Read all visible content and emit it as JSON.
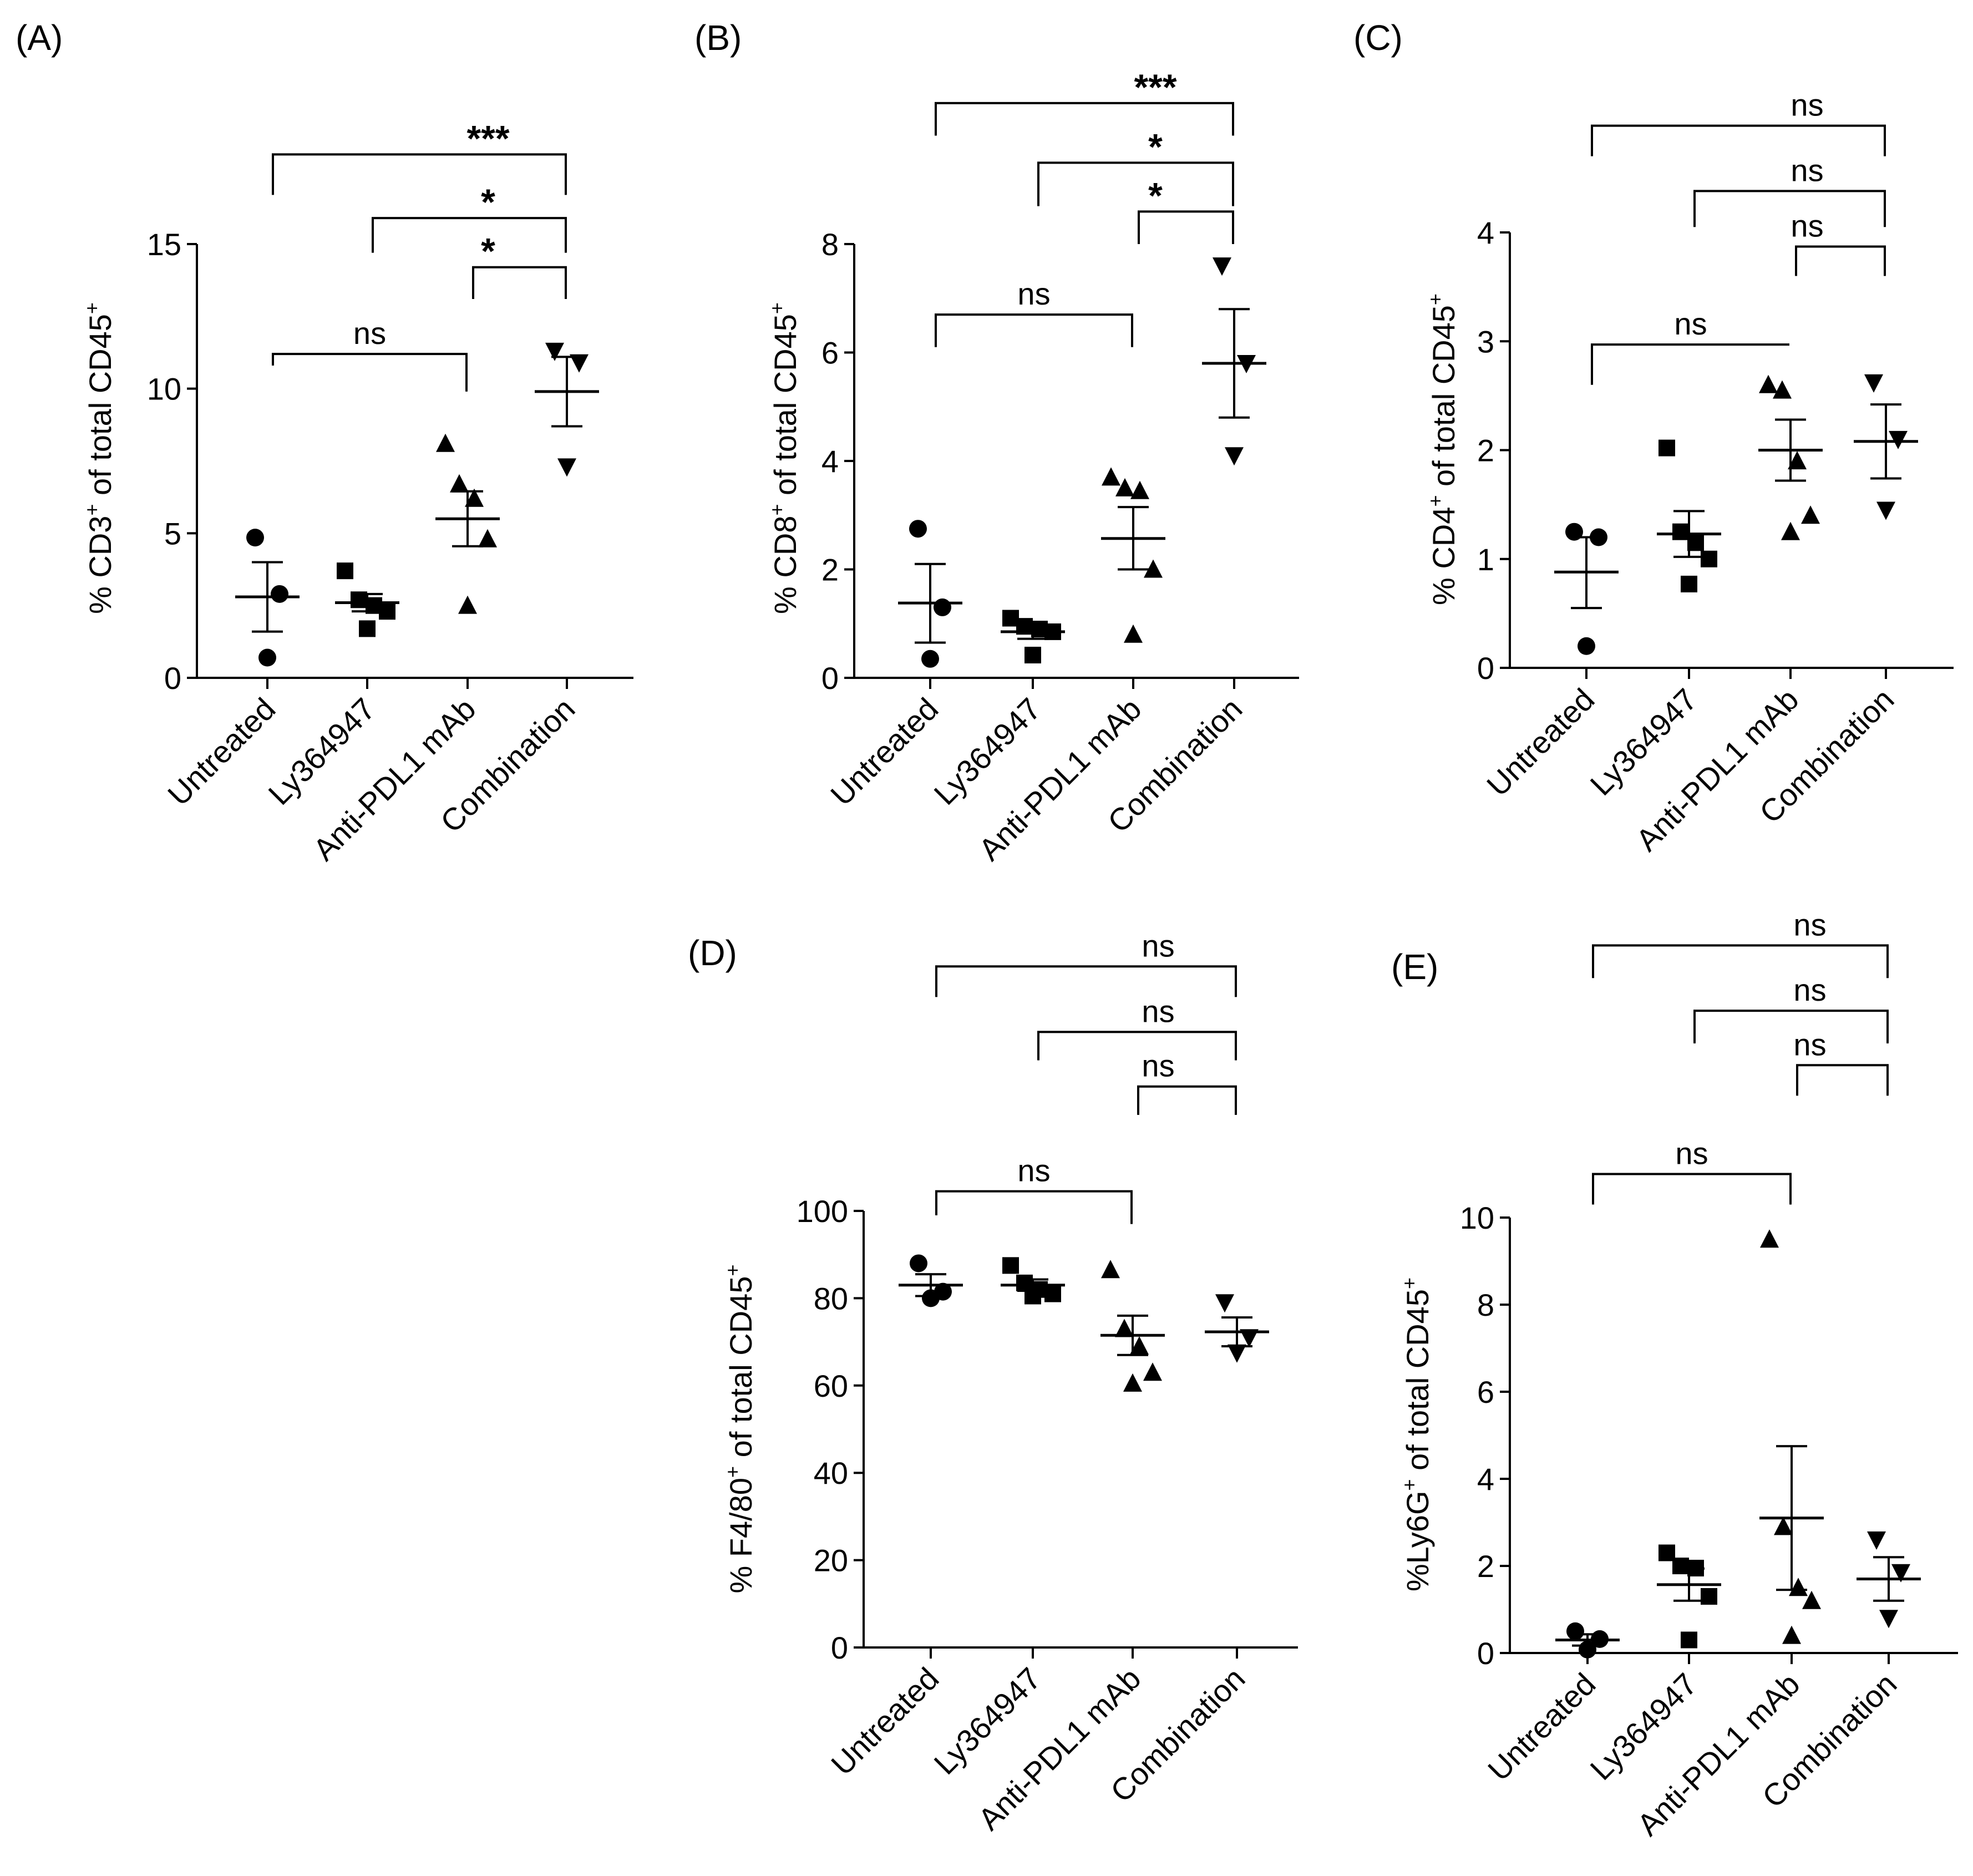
{
  "figure": {
    "categories": [
      "Untreated",
      "Ly364947",
      "Anti-PDL1 mAb",
      "Combination"
    ],
    "marker_colors": {
      "points": "#000000",
      "lines": "#000000"
    }
  },
  "chart_data": [
    {
      "panel": "(A)",
      "type": "scatter",
      "ylabel_main": "% CD3",
      "ylabel_sup1": "+",
      "ylabel_mid": " of total CD45",
      "ylabel_sup2": "+",
      "ylim": [
        0,
        15
      ],
      "yticks": [
        0,
        5,
        10,
        15
      ],
      "categories": [
        "Untreated",
        "Ly364947",
        "Anti-PDL1 mAb",
        "Combination"
      ],
      "groups": [
        {
          "marker": "circle",
          "points": [
            4.85,
            2.9,
            0.7
          ],
          "mean": 2.8,
          "sem_low": 1.6,
          "sem_high": 4.0
        },
        {
          "marker": "square",
          "points": [
            3.7,
            2.7,
            2.5,
            2.3,
            1.7
          ],
          "mean": 2.6,
          "sem_low": 2.3,
          "sem_high": 2.9
        },
        {
          "marker": "triangle-up",
          "points": [
            8.1,
            6.7,
            6.2,
            4.8,
            2.5
          ],
          "mean": 5.5,
          "sem_low": 4.55,
          "sem_high": 6.45
        },
        {
          "marker": "triangle-down",
          "points": [
            11.3,
            10.9,
            7.3
          ],
          "mean": 9.9,
          "sem_low": 8.7,
          "sem_high": 11.1
        }
      ],
      "brackets": [
        {
          "from": 0,
          "to": 2,
          "label": "ns",
          "y": 11.2,
          "y_left": 10.8,
          "y_right": 9.9
        },
        {
          "from": 2,
          "to": 3,
          "label": "*",
          "y": 14.2,
          "y_left": 13.1,
          "y_right": 13.1
        },
        {
          "from": 1,
          "to": 3,
          "label": "*",
          "y": 15.9,
          "y_left": 14.7,
          "y_right": 14.7
        },
        {
          "from": 0,
          "to": 3,
          "label": "***",
          "y": 18.1,
          "y_left": 16.7,
          "y_right": 16.7
        }
      ]
    },
    {
      "panel": "(B)",
      "type": "scatter",
      "ylabel_main": "% CD8",
      "ylabel_sup1": "+",
      "ylabel_mid": " of total CD45",
      "ylabel_sup2": "+",
      "ylim": [
        0,
        8
      ],
      "yticks": [
        0,
        2,
        4,
        6,
        8
      ],
      "categories": [
        "Untreated",
        "Ly364947",
        "Anti-PDL1 mAb",
        "Combination"
      ],
      "groups": [
        {
          "marker": "circle",
          "points": [
            2.75,
            1.3,
            0.35
          ],
          "mean": 1.38,
          "sem_low": 0.65,
          "sem_high": 2.1
        },
        {
          "marker": "square",
          "points": [
            1.1,
            0.95,
            0.9,
            0.85,
            0.42
          ],
          "mean": 0.85,
          "sem_low": 0.72,
          "sem_high": 0.98
        },
        {
          "marker": "triangle-up",
          "points": [
            3.7,
            3.5,
            3.45,
            2.0,
            0.8
          ],
          "mean": 2.57,
          "sem_low": 2.0,
          "sem_high": 3.15
        },
        {
          "marker": "triangle-down",
          "points": [
            7.6,
            5.8,
            4.1
          ],
          "mean": 5.8,
          "sem_low": 4.8,
          "sem_high": 6.8
        }
      ],
      "brackets": [
        {
          "from": 0,
          "to": 2,
          "label": "ns",
          "y": 6.7,
          "y_left": 6.1,
          "y_right": 6.1
        },
        {
          "from": 2,
          "to": 3,
          "label": "*",
          "y": 8.6,
          "y_left": 8.0,
          "y_right": 8.0
        },
        {
          "from": 1,
          "to": 3,
          "label": "*",
          "y": 9.5,
          "y_left": 8.7,
          "y_right": 8.7
        },
        {
          "from": 0,
          "to": 3,
          "label": "***",
          "y": 10.6,
          "y_left": 10.0,
          "y_right": 10.0
        }
      ]
    },
    {
      "panel": "(C)",
      "type": "scatter",
      "ylabel_main": "% CD4",
      "ylabel_sup1": "+",
      "ylabel_mid": " of total CD45",
      "ylabel_sup2": "+",
      "ylim": [
        0,
        4
      ],
      "yticks": [
        0,
        1,
        2,
        3,
        4
      ],
      "categories": [
        "Untreated",
        "Ly364947",
        "Anti-PDL1 mAb",
        "Combination"
      ],
      "groups": [
        {
          "marker": "circle",
          "points": [
            1.25,
            1.2,
            0.2
          ],
          "mean": 0.88,
          "sem_low": 0.55,
          "sem_high": 1.2
        },
        {
          "marker": "square",
          "points": [
            2.02,
            1.25,
            1.15,
            1.0,
            0.77
          ],
          "mean": 1.23,
          "sem_low": 1.02,
          "sem_high": 1.44
        },
        {
          "marker": "triangle-up",
          "points": [
            2.6,
            2.55,
            1.9,
            1.4,
            1.25
          ],
          "mean": 2.0,
          "sem_low": 1.72,
          "sem_high": 2.28
        },
        {
          "marker": "triangle-down",
          "points": [
            2.62,
            2.1,
            1.45
          ],
          "mean": 2.08,
          "sem_low": 1.74,
          "sem_high": 2.42
        }
      ],
      "brackets": [
        {
          "from": 0,
          "to": 2,
          "label": "ns",
          "y": 2.97,
          "y_left": 2.6,
          "y_right": 2.97
        },
        {
          "from": 2,
          "to": 3,
          "label": "ns",
          "y": 3.87,
          "y_left": 3.6,
          "y_right": 3.6
        },
        {
          "from": 1,
          "to": 3,
          "label": "ns",
          "y": 4.38,
          "y_left": 4.05,
          "y_right": 4.05
        },
        {
          "from": 0,
          "to": 3,
          "label": "ns",
          "y": 4.98,
          "y_left": 4.7,
          "y_right": 4.7
        }
      ]
    },
    {
      "panel": "(D)",
      "type": "scatter",
      "ylabel_main": "% F4/80",
      "ylabel_sup1": "+",
      "ylabel_mid": " of total CD45",
      "ylabel_sup2": "+",
      "ylim": [
        0,
        100
      ],
      "yticks": [
        0,
        20,
        40,
        60,
        80,
        100
      ],
      "categories": [
        "Untreated",
        "Ly364947",
        "Anti-PDL1 mAb",
        "Combination"
      ],
      "groups": [
        {
          "marker": "circle",
          "points": [
            88.0,
            81.5,
            80.0
          ],
          "mean": 83.0,
          "sem_low": 80.5,
          "sem_high": 85.5
        },
        {
          "marker": "square",
          "points": [
            87.5,
            83.5,
            82.0,
            81.0,
            80.5
          ],
          "mean": 83.0,
          "sem_low": 81.7,
          "sem_high": 84.3
        },
        {
          "marker": "triangle-up",
          "points": [
            86.5,
            73.0,
            69.0,
            63.0,
            60.5
          ],
          "mean": 71.5,
          "sem_low": 67.0,
          "sem_high": 76.0
        },
        {
          "marker": "triangle-down",
          "points": [
            79.0,
            71.0,
            67.5
          ],
          "mean": 72.3,
          "sem_low": 69.0,
          "sem_high": 75.6
        }
      ],
      "brackets": [
        {
          "from": 0,
          "to": 2,
          "label": "ns",
          "y": 104.5,
          "y_left": 99.0,
          "y_right": 97.0
        },
        {
          "from": 2,
          "to": 3,
          "label": "ns",
          "y": 128.5,
          "y_left": 122.0,
          "y_right": 122.0
        },
        {
          "from": 1,
          "to": 3,
          "label": "ns",
          "y": 141.0,
          "y_left": 134.5,
          "y_right": 134.5
        },
        {
          "from": 0,
          "to": 3,
          "label": "ns",
          "y": 156.0,
          "y_left": 149.0,
          "y_right": 149.0
        }
      ]
    },
    {
      "panel": "(E)",
      "type": "scatter",
      "ylabel_main": "%Ly6G",
      "ylabel_sup1": "+",
      "ylabel_mid": " of total CD45",
      "ylabel_sup2": "+",
      "ylim": [
        0,
        10
      ],
      "yticks": [
        0,
        2,
        4,
        6,
        8,
        10
      ],
      "categories": [
        "Untreated",
        "Ly364947",
        "Anti-PDL1 mAb",
        "Combination"
      ],
      "groups": [
        {
          "marker": "circle",
          "points": [
            0.5,
            0.32,
            0.08
          ],
          "mean": 0.3,
          "sem_low": 0.17,
          "sem_high": 0.43
        },
        {
          "marker": "square",
          "points": [
            2.3,
            2.0,
            1.95,
            1.3,
            0.3
          ],
          "mean": 1.57,
          "sem_low": 1.2,
          "sem_high": 1.94
        },
        {
          "marker": "triangle-up",
          "points": [
            9.5,
            2.9,
            1.5,
            1.2,
            0.4
          ],
          "mean": 3.1,
          "sem_low": 1.45,
          "sem_high": 4.75
        },
        {
          "marker": "triangle-down",
          "points": [
            2.6,
            1.85,
            0.8
          ],
          "mean": 1.7,
          "sem_low": 1.2,
          "sem_high": 2.2
        }
      ],
      "brackets": [
        {
          "from": 0,
          "to": 2,
          "label": "ns",
          "y": 11.0,
          "y_left": 10.3,
          "y_right": 10.3
        },
        {
          "from": 2,
          "to": 3,
          "label": "ns",
          "y": 13.5,
          "y_left": 12.8,
          "y_right": 12.8
        },
        {
          "from": 1,
          "to": 3,
          "label": "ns",
          "y": 14.75,
          "y_left": 14.0,
          "y_right": 14.0
        },
        {
          "from": 0,
          "to": 3,
          "label": "ns",
          "y": 16.25,
          "y_left": 15.5,
          "y_right": 15.5
        }
      ]
    }
  ]
}
